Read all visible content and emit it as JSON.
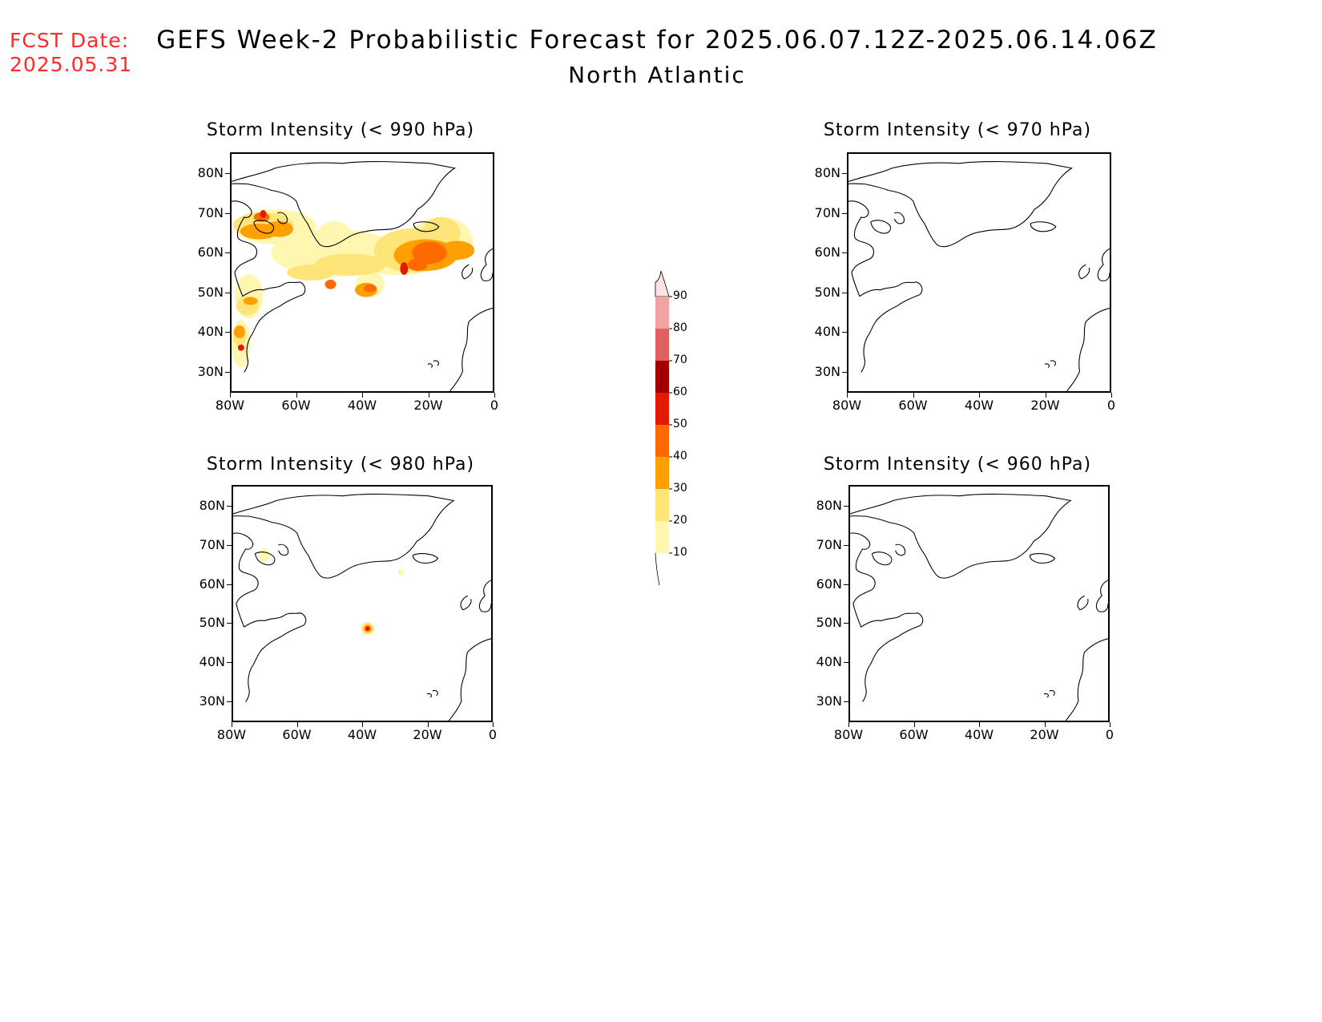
{
  "header": {
    "fcst_label": "FCST Date:",
    "fcst_date": "2025.05.31",
    "title": "GEFS Week-2 Probabilistic Forecast for 2025.06.07.12Z-2025.06.14.06Z",
    "subtitle": "North Atlantic"
  },
  "axes": {
    "lat_labels": [
      "80N",
      "70N",
      "60N",
      "50N",
      "40N",
      "30N"
    ],
    "lon_labels": [
      "80W",
      "60W",
      "40W",
      "20W",
      "0"
    ]
  },
  "panels": [
    {
      "id": "p990",
      "title": "Storm Intensity (< 990 hPa)",
      "activity": "high"
    },
    {
      "id": "p970",
      "title": "Storm Intensity (< 970 hPa)",
      "activity": "none"
    },
    {
      "id": "p980",
      "title": "Storm Intensity (< 980 hPa)",
      "activity": "low"
    },
    {
      "id": "p960",
      "title": "Storm Intensity (< 960 hPa)",
      "activity": "none"
    }
  ],
  "colorbar": {
    "levels": [
      "10",
      "20",
      "30",
      "40",
      "50",
      "60",
      "70",
      "80",
      "90"
    ],
    "colors": [
      "#fff7b0",
      "#ffe478",
      "#ff9f00",
      "#ff6a00",
      "#e21a00",
      "#a20000",
      "#e06060",
      "#f0a3a3",
      "#fde3e3"
    ]
  }
}
